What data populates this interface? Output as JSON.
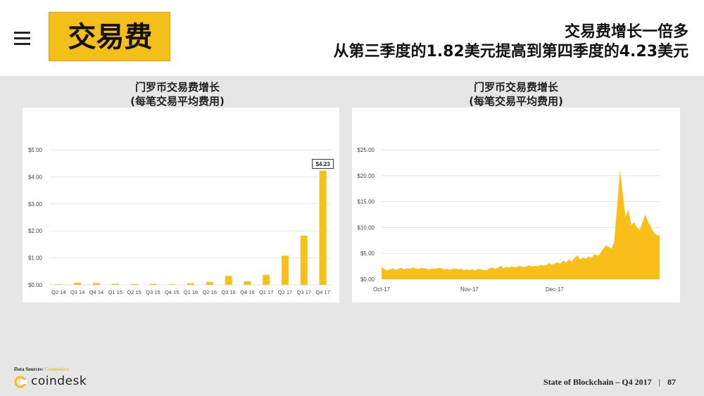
{
  "header": {
    "title": "交易费",
    "headline_line1": "交易费增长一倍多",
    "headline_line2": "从第三季度的1.82美元提高到第四季度的4.23美元"
  },
  "footer": {
    "sources_label": "Data Sources:",
    "sources_value": "Coinmetrics",
    "logo_text": "coindesk",
    "report_title": "State of Blockchain – Q4 2017",
    "separator": "|",
    "page_number": "87"
  },
  "colors": {
    "accent": "#f5bf1a",
    "bar": "#f7bf17",
    "grid": "#e3e3e3"
  },
  "chart_data": [
    {
      "type": "bar",
      "title_line1": "门罗币交易费增长",
      "title_line2": "(每笔交易平均费用)",
      "categories": [
        "Q2 14",
        "Q3 14",
        "Q4 14",
        "Q1 15",
        "Q2 15",
        "Q3 15",
        "Q4 15",
        "Q1 16",
        "Q2 16",
        "Q3 16",
        "Q4 16",
        "Q1 17",
        "Q2 17",
        "Q3 17",
        "Q4 17"
      ],
      "values": [
        0.02,
        0.08,
        0.07,
        0.04,
        0.03,
        0.04,
        0.02,
        0.06,
        0.11,
        0.33,
        0.13,
        0.37,
        1.08,
        1.82,
        4.23
      ],
      "yticks": [
        "$0.00",
        "$1.00",
        "$2.00",
        "$3.00",
        "$4.00",
        "$5.00"
      ],
      "ylim": [
        0,
        5
      ],
      "callout": "$4.23",
      "grid": true
    },
    {
      "type": "area",
      "title_line1": "门罗币交易费增长",
      "title_line2": "(每笔交易平均费用)",
      "xticks": [
        {
          "label": "Oct-17",
          "day": 0
        },
        {
          "label": "Nov-17",
          "day": 31
        },
        {
          "label": "Dec-17",
          "day": 61
        }
      ],
      "yticks": [
        "$0.00",
        "$5.00",
        "$10.00",
        "$15.00",
        "$20.00",
        "$25.00"
      ],
      "ylim": [
        0,
        25
      ],
      "x_days": [
        0,
        1,
        2,
        3,
        4,
        5,
        6,
        7,
        8,
        9,
        10,
        11,
        12,
        13,
        14,
        15,
        16,
        17,
        18,
        19,
        20,
        21,
        22,
        23,
        24,
        25,
        26,
        27,
        28,
        29,
        30,
        31,
        32,
        33,
        34,
        35,
        36,
        37,
        38,
        39,
        40,
        41,
        42,
        43,
        44,
        45,
        46,
        47,
        48,
        49,
        50,
        51,
        52,
        53,
        54,
        55,
        56,
        57,
        58,
        59,
        60,
        61,
        62,
        63,
        64,
        65,
        66,
        67,
        68,
        69,
        70,
        71,
        72,
        73,
        74,
        75,
        76,
        77,
        78,
        79,
        80,
        81,
        82,
        83,
        84,
        85,
        86,
        87,
        88,
        89,
        90,
        91,
        92,
        93,
        94,
        95,
        96,
        97,
        98
      ],
      "y_values": [
        2.3,
        2.0,
        1.7,
        1.9,
        2.1,
        1.8,
        2.0,
        2.2,
        1.9,
        2.1,
        2.0,
        2.3,
        2.1,
        2.0,
        2.2,
        2.1,
        2.0,
        1.9,
        2.1,
        2.0,
        2.2,
        2.1,
        1.9,
        2.0,
        1.8,
        2.0,
        2.1,
        1.9,
        2.0,
        1.8,
        1.9,
        1.8,
        1.9,
        1.7,
        2.0,
        1.9,
        1.8,
        1.7,
        2.1,
        2.3,
        2.0,
        2.2,
        2.6,
        2.1,
        2.4,
        2.2,
        2.5,
        2.3,
        2.4,
        2.6,
        2.3,
        2.5,
        2.7,
        2.4,
        2.6,
        2.5,
        2.8,
        2.6,
        2.7,
        3.1,
        2.8,
        3.0,
        3.3,
        3.0,
        3.6,
        3.2,
        3.8,
        3.4,
        4.1,
        4.6,
        3.8,
        4.2,
        4.0,
        4.4,
        4.1,
        4.9,
        4.5,
        4.9,
        5.8,
        6.5,
        6.3,
        5.9,
        7.2,
        14.0,
        21.0,
        16.5,
        12.0,
        13.5,
        10.5,
        11.0,
        10.0,
        9.5,
        11.0,
        12.5,
        11.0,
        10.0,
        9.0,
        8.5,
        8.5
      ],
      "grid": true
    }
  ]
}
